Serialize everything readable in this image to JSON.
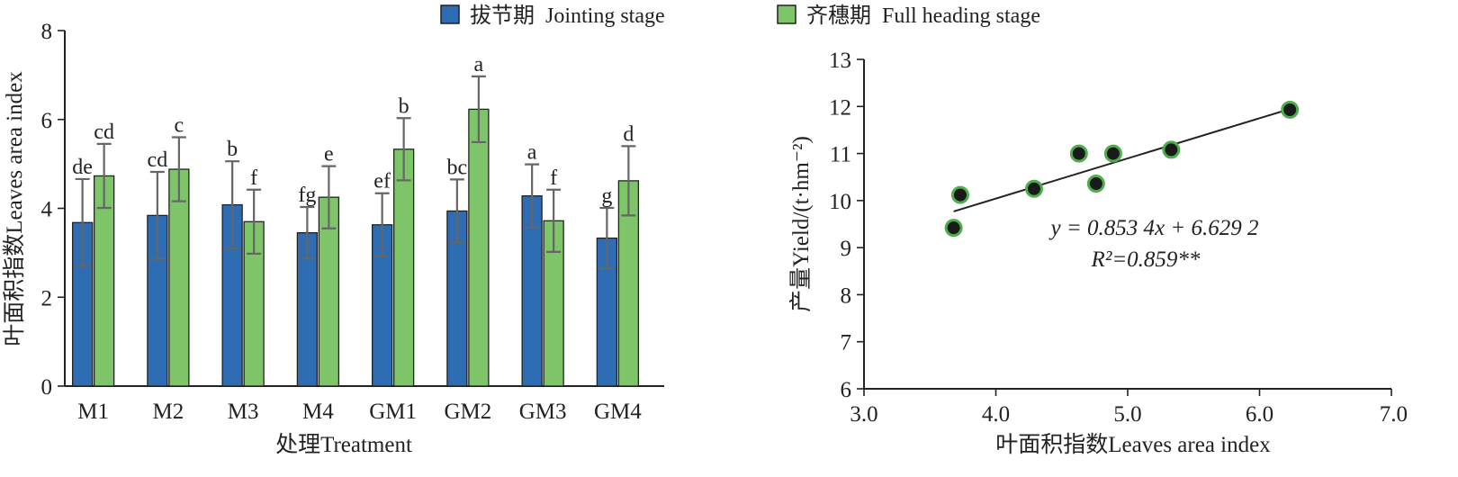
{
  "colors": {
    "jointing": "#2e6db4",
    "heading": "#7ec56a",
    "error_bar": "#666666",
    "point_fill": "#1a1a1a",
    "point_edge": "#4cae4c",
    "axis": "#222222"
  },
  "chart_data": [
    {
      "type": "bar",
      "categories": [
        "M1",
        "M2",
        "M3",
        "M4",
        "GM1",
        "GM2",
        "GM3",
        "GM4"
      ],
      "series": [
        {
          "name": "拔节期  Jointing stage",
          "values": [
            3.68,
            3.84,
            4.08,
            3.45,
            3.63,
            3.94,
            4.28,
            3.33
          ],
          "error": [
            0.98,
            0.98,
            0.98,
            0.58,
            0.71,
            0.71,
            0.71,
            0.68
          ],
          "labels": [
            "de",
            "cd",
            "b",
            "fg",
            "ef",
            "bc",
            "a",
            "g"
          ]
        },
        {
          "name": "齐穗期  Full heading stage",
          "values": [
            4.73,
            4.88,
            3.7,
            4.25,
            5.33,
            6.23,
            3.72,
            4.62
          ],
          "error": [
            0.72,
            0.72,
            0.72,
            0.7,
            0.7,
            0.74,
            0.7,
            0.78
          ],
          "labels": [
            "cd",
            "c",
            "f",
            "e",
            "b",
            "a",
            "f",
            "d"
          ]
        }
      ],
      "xlabel": "处理Treatment",
      "ylabel": "叶面积指数Leaves area index",
      "ylim": [
        0,
        8
      ],
      "yticks": [
        "0",
        "2",
        "4",
        "6",
        "8"
      ],
      "legend_position": "top",
      "grid": false
    },
    {
      "type": "scatter",
      "x": [
        3.68,
        3.73,
        4.29,
        4.63,
        4.76,
        4.89,
        5.33,
        6.23
      ],
      "y": [
        9.42,
        10.12,
        10.25,
        11.0,
        10.36,
        11.0,
        11.08,
        11.93
      ],
      "trendline": {
        "slope": 0.8534,
        "intercept": 6.6292,
        "x_range": [
          3.68,
          6.23
        ]
      },
      "equation": "y = 0.853 4x + 6.629 2",
      "r_squared": "R²=0.859**",
      "xlabel": "叶面积指数Leaves area index",
      "ylabel": "产量Yield/(t·hm⁻²)",
      "xlim": [
        3.0,
        7.0
      ],
      "ylim": [
        6,
        13
      ],
      "xticks": [
        "3.0",
        "4.0",
        "5.0",
        "6.0",
        "7.0"
      ],
      "yticks": [
        "6",
        "7",
        "8",
        "9",
        "10",
        "11",
        "12",
        "13"
      ],
      "grid": false
    }
  ]
}
